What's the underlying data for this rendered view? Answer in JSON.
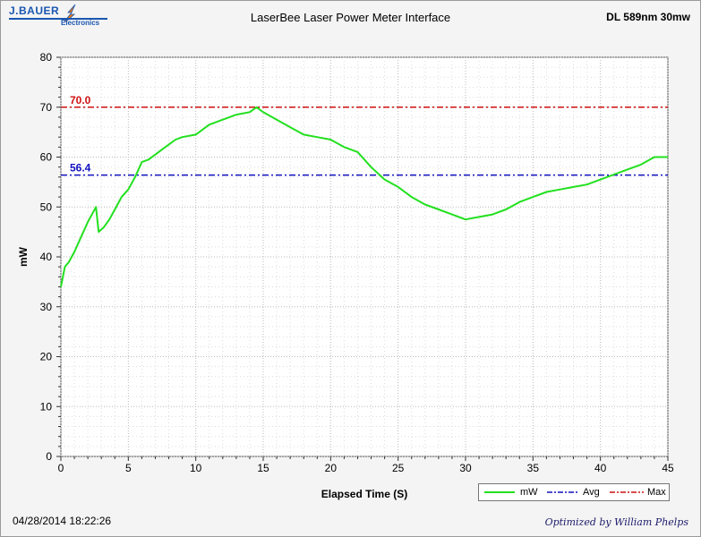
{
  "header": {
    "logo_name": "J.BAUER",
    "logo_sub": "Electronics",
    "title": "LaserBee Laser Power Meter Interface",
    "device": "DL 589nm 30mw"
  },
  "footer": {
    "timestamp": "04/28/2014 18:22:26",
    "credit": "Optimized by William Phelps"
  },
  "colors": {
    "series": "#22e01e",
    "avg": "#1010c0",
    "max": "#d01010"
  },
  "chart_data": {
    "type": "line",
    "xlabel": "Elapsed Time (S)",
    "ylabel": "mW",
    "xlim": [
      0,
      45
    ],
    "ylim": [
      0,
      80
    ],
    "x_ticks": [
      0,
      5,
      10,
      15,
      20,
      25,
      30,
      35,
      40,
      45
    ],
    "y_ticks": [
      0,
      10,
      20,
      30,
      40,
      50,
      60,
      70,
      80
    ],
    "grid": true,
    "legend_position": "bottom-right",
    "series": [
      {
        "name": "mW",
        "x": [
          0,
          0.3,
          0.6,
          1,
          1.5,
          2,
          2.6,
          2.8,
          3.2,
          3.6,
          4,
          4.5,
          5,
          5.5,
          6,
          6.5,
          7,
          7.5,
          8,
          8.5,
          9,
          10,
          11,
          12,
          13,
          14,
          14.5,
          15,
          16,
          17,
          18,
          19,
          20,
          21,
          22,
          23,
          24,
          25,
          26,
          27,
          28,
          29,
          30,
          31,
          32,
          33,
          34,
          35,
          36,
          37,
          38,
          39,
          40,
          41,
          42,
          43,
          44,
          45
        ],
        "y": [
          34,
          38,
          39,
          41,
          44,
          47,
          50,
          45,
          46,
          47.5,
          49.5,
          52,
          53.5,
          56,
          59,
          59.5,
          60.5,
          61.5,
          62.5,
          63.5,
          64,
          64.5,
          66.5,
          67.5,
          68.5,
          69,
          70,
          69,
          67.5,
          66,
          64.5,
          64,
          63.5,
          62,
          61,
          58,
          55.5,
          54,
          52,
          50.5,
          49.5,
          48.5,
          47.5,
          48,
          48.5,
          49.5,
          51,
          52,
          53,
          53.5,
          54,
          54.5,
          55.5,
          56.5,
          57.5,
          58.5,
          60,
          60
        ]
      },
      {
        "name": "Avg",
        "value": 56.4,
        "label": "56.4"
      },
      {
        "name": "Max",
        "value": 70.0,
        "label": "70.0"
      }
    ]
  }
}
